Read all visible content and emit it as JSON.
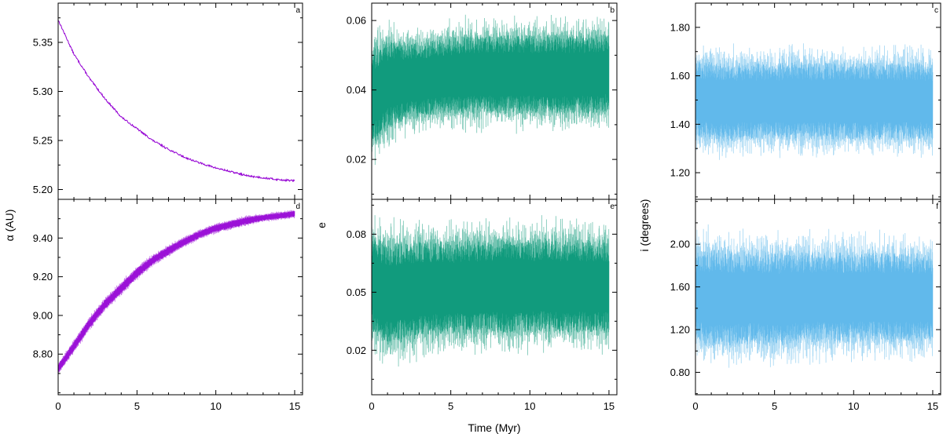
{
  "figure": {
    "xlabel": "Time (Myr)",
    "column_ylabels": [
      "α (AU)",
      "e",
      "i (degrees)"
    ]
  },
  "chart_data": [
    {
      "type": "line",
      "panel": "a",
      "color": "#9400d3",
      "band": false,
      "xlim": [
        0,
        15.5
      ],
      "ylim": [
        5.19,
        5.39
      ],
      "xticks": [
        0,
        5,
        10,
        15
      ],
      "xtick_labels": [],
      "yticks": [
        5.2,
        5.25,
        5.3,
        5.35
      ],
      "ytick_labels": [
        "5.20",
        "5.25",
        "5.30",
        "5.35"
      ],
      "x": [
        0,
        1,
        2,
        3,
        4,
        5,
        6,
        7,
        8,
        9,
        10,
        11,
        12,
        13,
        14,
        15
      ],
      "y": [
        5.373,
        5.338,
        5.313,
        5.292,
        5.274,
        5.262,
        5.25,
        5.241,
        5.233,
        5.227,
        5.222,
        5.218,
        5.214,
        5.212,
        5.21,
        5.209
      ]
    },
    {
      "type": "line",
      "panel": "b",
      "color": "#009473",
      "band": true,
      "xlim": [
        0,
        15.5
      ],
      "ylim": [
        0.0085,
        0.065
      ],
      "xticks": [
        0,
        5,
        10,
        15
      ],
      "xtick_labels": [],
      "yticks": [
        0.02,
        0.04,
        0.06
      ],
      "ytick_labels": [
        "0.02",
        "0.04",
        "0.06"
      ],
      "x": [
        0,
        1,
        2,
        3,
        4,
        5,
        6,
        7,
        8,
        9,
        10,
        11,
        12,
        13,
        14,
        15
      ],
      "y_upper": [
        0.06,
        0.061,
        0.06,
        0.06,
        0.06,
        0.061,
        0.062,
        0.062,
        0.062,
        0.062,
        0.062,
        0.062,
        0.062,
        0.062,
        0.062,
        0.062
      ],
      "y_lower": [
        0.015,
        0.022,
        0.025,
        0.026,
        0.027,
        0.027,
        0.027,
        0.027,
        0.027,
        0.027,
        0.027,
        0.027,
        0.027,
        0.027,
        0.027,
        0.028
      ]
    },
    {
      "type": "line",
      "panel": "c",
      "color": "#56b4e9",
      "band": true,
      "xlim": [
        0,
        15.5
      ],
      "ylim": [
        1.09,
        1.9
      ],
      "xticks": [
        0,
        5,
        10,
        15
      ],
      "xtick_labels": [],
      "yticks": [
        1.2,
        1.4,
        1.6,
        1.8
      ],
      "ytick_labels": [
        "1.20",
        "1.40",
        "1.60",
        "1.80"
      ],
      "x": [
        0,
        1,
        2,
        3,
        4,
        5,
        6,
        7,
        8,
        9,
        10,
        11,
        12,
        13,
        14,
        15
      ],
      "y_upper": [
        1.74,
        1.75,
        1.74,
        1.74,
        1.74,
        1.73,
        1.75,
        1.74,
        1.74,
        1.74,
        1.74,
        1.74,
        1.74,
        1.74,
        1.74,
        1.73
      ],
      "y_lower": [
        1.27,
        1.24,
        1.24,
        1.25,
        1.25,
        1.26,
        1.24,
        1.25,
        1.25,
        1.25,
        1.25,
        1.25,
        1.25,
        1.25,
        1.25,
        1.25
      ]
    },
    {
      "type": "line",
      "panel": "d",
      "color": "#9400d3",
      "band": true,
      "xlim": [
        0,
        15.5
      ],
      "ylim": [
        8.59,
        9.6
      ],
      "xticks": [
        0,
        5,
        10,
        15
      ],
      "xtick_labels": [
        "0",
        "5",
        "10",
        "15"
      ],
      "yticks": [
        8.8,
        9.0,
        9.2,
        9.4
      ],
      "ytick_labels": [
        "8.80",
        "9.00",
        "9.20",
        "9.40"
      ],
      "x": [
        0,
        1,
        2,
        3,
        4,
        5,
        6,
        7,
        8,
        9,
        10,
        11,
        12,
        13,
        14,
        15
      ],
      "y_upper": [
        8.76,
        8.88,
        9.0,
        9.1,
        9.18,
        9.26,
        9.32,
        9.37,
        9.41,
        9.45,
        9.48,
        9.5,
        9.52,
        9.53,
        9.54,
        9.55
      ],
      "y_lower": [
        8.69,
        8.8,
        8.92,
        9.02,
        9.1,
        9.18,
        9.25,
        9.3,
        9.35,
        9.39,
        9.42,
        9.44,
        9.46,
        9.48,
        9.49,
        9.5
      ]
    },
    {
      "type": "line",
      "panel": "e",
      "color": "#009473",
      "band": true,
      "xlim": [
        0,
        15.5
      ],
      "ylim": [
        -0.003,
        0.098
      ],
      "xticks": [
        0,
        5,
        10,
        15
      ],
      "xtick_labels": [
        "0",
        "5",
        "10",
        "15"
      ],
      "yticks": [
        0.02,
        0.05,
        0.08
      ],
      "ytick_labels": [
        "0.02",
        "0.05",
        "0.08"
      ],
      "x": [
        0,
        1,
        2,
        3,
        4,
        5,
        6,
        7,
        8,
        9,
        10,
        11,
        12,
        13,
        14,
        15
      ],
      "y_upper": [
        0.092,
        0.09,
        0.09,
        0.091,
        0.09,
        0.089,
        0.091,
        0.09,
        0.091,
        0.09,
        0.09,
        0.091,
        0.09,
        0.09,
        0.09,
        0.089
      ],
      "y_lower": [
        0.017,
        0.008,
        0.01,
        0.012,
        0.014,
        0.015,
        0.014,
        0.015,
        0.016,
        0.015,
        0.016,
        0.016,
        0.016,
        0.016,
        0.016,
        0.016
      ]
    },
    {
      "type": "line",
      "panel": "f",
      "color": "#56b4e9",
      "band": true,
      "xlim": [
        0,
        15.5
      ],
      "ylim": [
        0.59,
        2.42
      ],
      "xticks": [
        0,
        5,
        10,
        15
      ],
      "xtick_labels": [
        "0",
        "5",
        "10",
        "15"
      ],
      "yticks": [
        0.8,
        1.2,
        1.6,
        2.0
      ],
      "ytick_labels": [
        "0.80",
        "1.20",
        "1.60",
        "2.00"
      ],
      "x": [
        0,
        1,
        2,
        3,
        4,
        5,
        6,
        7,
        8,
        9,
        10,
        11,
        12,
        13,
        14,
        15
      ],
      "y_upper": [
        2.15,
        2.2,
        2.18,
        2.17,
        2.17,
        2.15,
        2.17,
        2.16,
        2.16,
        2.15,
        2.15,
        2.15,
        2.14,
        2.14,
        2.14,
        2.13
      ],
      "y_lower": [
        0.86,
        0.79,
        0.8,
        0.82,
        0.83,
        0.8,
        0.83,
        0.84,
        0.85,
        0.85,
        0.86,
        0.86,
        0.86,
        0.86,
        0.86,
        0.86
      ]
    }
  ]
}
